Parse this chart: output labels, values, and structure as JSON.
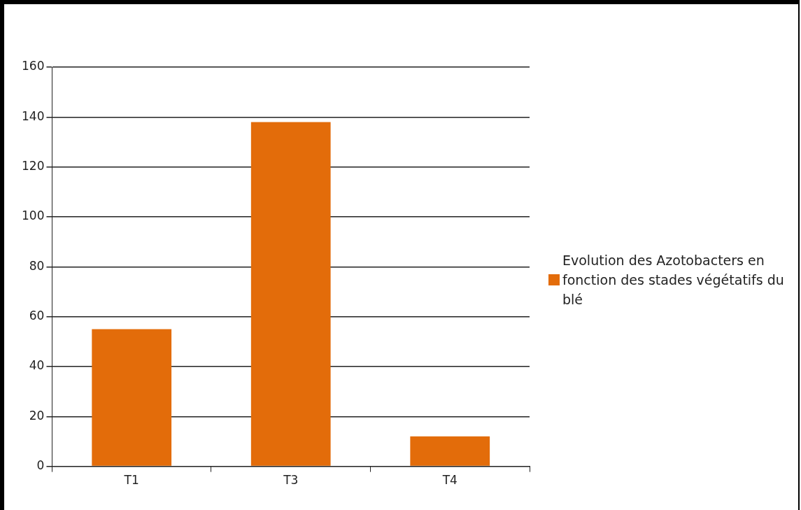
{
  "chart_data": {
    "type": "bar",
    "categories": [
      "T1",
      "T3",
      "T4"
    ],
    "series": [
      {
        "name": "Evolution des Azotobacters en fonction des stades végétatifs du blé",
        "color": "#e36c0a",
        "values": [
          55,
          138,
          12
        ]
      }
    ],
    "ylim": [
      0,
      160
    ],
    "yticks": [
      0,
      20,
      40,
      60,
      80,
      100,
      120,
      140,
      160
    ],
    "grid": "y",
    "legend": "right"
  }
}
